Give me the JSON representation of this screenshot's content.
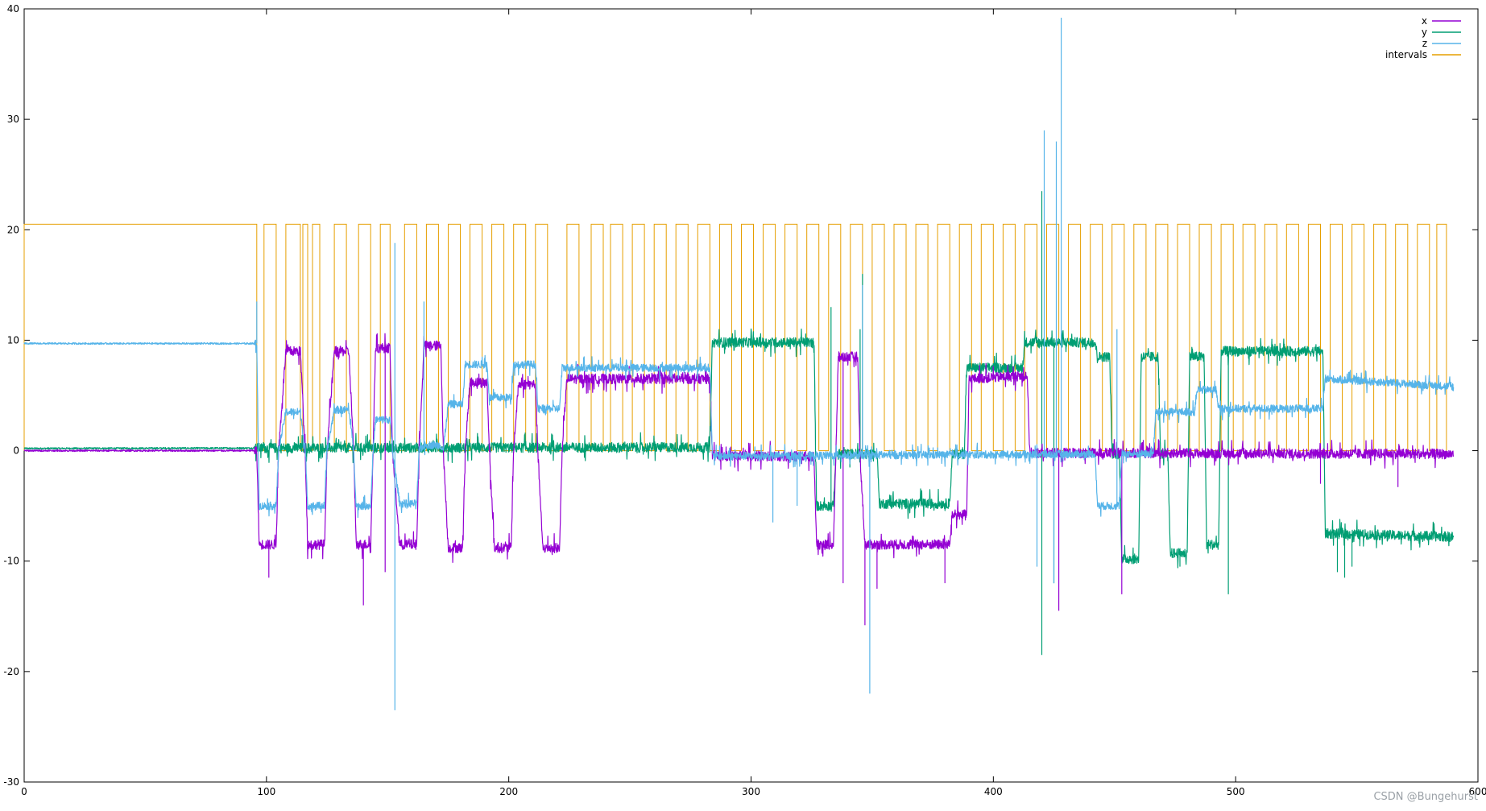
{
  "chart_data": {
    "type": "line",
    "title": "",
    "xlabel": "",
    "ylabel": "",
    "xlim": [
      0,
      600
    ],
    "ylim": [
      -30,
      40
    ],
    "x_ticks": [
      0,
      100,
      200,
      300,
      400,
      500,
      600
    ],
    "y_ticks": [
      -30,
      -20,
      -10,
      0,
      10,
      20,
      30,
      40
    ],
    "grid": false,
    "legend_position": "top-right",
    "series": [
      {
        "name": "x",
        "color": "#9400d3",
        "levels": [
          [
            0,
            0.0
          ],
          [
            96,
            0.0
          ],
          [
            97,
            -8.5
          ],
          [
            104,
            -8.5
          ],
          [
            105,
            0.0
          ],
          [
            108,
            9.0
          ],
          [
            114,
            9.0
          ],
          [
            116,
            0.0
          ],
          [
            117,
            -8.5
          ],
          [
            124,
            -8.5
          ],
          [
            125,
            0.0
          ],
          [
            128,
            9.0
          ],
          [
            134,
            9.0
          ],
          [
            136,
            0.0
          ],
          [
            137,
            -8.5
          ],
          [
            143,
            -8.5
          ],
          [
            144,
            0.0
          ],
          [
            145,
            9.3
          ],
          [
            151,
            9.3
          ],
          [
            152,
            0.0
          ],
          [
            155,
            -8.5
          ],
          [
            162,
            -8.5
          ],
          [
            163,
            0.0
          ],
          [
            165,
            9.5
          ],
          [
            172,
            9.5
          ],
          [
            173,
            0.0
          ],
          [
            175,
            -8.8
          ],
          [
            181,
            -8.8
          ],
          [
            182,
            0.0
          ],
          [
            184,
            6.2
          ],
          [
            191,
            6.2
          ],
          [
            192,
            0.0
          ],
          [
            194,
            -8.8
          ],
          [
            201,
            -8.8
          ],
          [
            202,
            0.0
          ],
          [
            204,
            6.0
          ],
          [
            211,
            6.0
          ],
          [
            212,
            0.0
          ],
          [
            214,
            -8.8
          ],
          [
            221,
            -8.8
          ],
          [
            222,
            0.0
          ],
          [
            224,
            6.5
          ],
          [
            283,
            6.5
          ],
          [
            284,
            -0.5
          ],
          [
            326,
            -0.5
          ],
          [
            327,
            -8.5
          ],
          [
            334,
            -8.5
          ],
          [
            335,
            -0.5
          ],
          [
            336,
            8.5
          ],
          [
            344,
            8.5
          ],
          [
            345,
            -0.5
          ],
          [
            347,
            -8.5
          ],
          [
            382,
            -8.5
          ],
          [
            383,
            -5.8
          ],
          [
            389,
            -5.8
          ],
          [
            390,
            6.5
          ],
          [
            414,
            6.8
          ],
          [
            415,
            -0.2
          ],
          [
            590,
            -0.3
          ]
        ],
        "spikes": [
          [
            101,
            -11.5
          ],
          [
            140,
            -14.0
          ],
          [
            149,
            -11.0
          ],
          [
            338,
            -12.0
          ],
          [
            347,
            -15.8
          ],
          [
            352,
            -12.5
          ],
          [
            380,
            -12.0
          ],
          [
            427,
            -14.5
          ],
          [
            453,
            -13.0
          ],
          [
            535,
            -3.0
          ],
          [
            567,
            -3.3
          ]
        ]
      },
      {
        "name": "y",
        "color": "#009e73",
        "levels": [
          [
            0,
            0.2
          ],
          [
            283,
            0.3
          ],
          [
            284,
            9.8
          ],
          [
            326,
            9.8
          ],
          [
            327,
            -5.0
          ],
          [
            334,
            -5.0
          ],
          [
            335,
            -0.3
          ],
          [
            352,
            -0.3
          ],
          [
            353,
            -4.8
          ],
          [
            382,
            -4.8
          ],
          [
            383,
            -0.3
          ],
          [
            388,
            -0.3
          ],
          [
            389,
            7.5
          ],
          [
            412,
            7.5
          ],
          [
            413,
            9.8
          ],
          [
            442,
            9.8
          ],
          [
            443,
            8.5
          ],
          [
            448,
            8.5
          ],
          [
            449,
            -0.3
          ],
          [
            452,
            -0.3
          ],
          [
            453,
            -9.8
          ],
          [
            460,
            -9.8
          ],
          [
            461,
            8.5
          ],
          [
            468,
            8.5
          ],
          [
            469,
            -0.3
          ],
          [
            472,
            -0.3
          ],
          [
            473,
            -9.3
          ],
          [
            480,
            -9.3
          ],
          [
            481,
            8.5
          ],
          [
            487,
            8.5
          ],
          [
            488,
            -8.5
          ],
          [
            493,
            -8.5
          ],
          [
            494,
            9.0
          ],
          [
            536,
            9.0
          ],
          [
            537,
            -7.5
          ],
          [
            590,
            -7.8
          ]
        ],
        "spikes": [
          [
            420,
            -18.5
          ],
          [
            420,
            23.5
          ],
          [
            425,
            -12.0
          ],
          [
            333,
            13.0
          ],
          [
            345,
            11.0
          ],
          [
            346,
            16.0
          ],
          [
            477,
            -10.5
          ],
          [
            497,
            -13.0
          ],
          [
            542,
            -11.0
          ],
          [
            545,
            -11.5
          ],
          [
            548,
            -10.5
          ]
        ]
      },
      {
        "name": "z",
        "color": "#56b4e9",
        "levels": [
          [
            0,
            9.7
          ],
          [
            96,
            9.7
          ],
          [
            97,
            -5.0
          ],
          [
            104,
            -5.0
          ],
          [
            105,
            0.0
          ],
          [
            108,
            3.5
          ],
          [
            114,
            3.5
          ],
          [
            116,
            0.0
          ],
          [
            117,
            -5.0
          ],
          [
            124,
            -5.0
          ],
          [
            125,
            0.0
          ],
          [
            128,
            3.7
          ],
          [
            134,
            3.7
          ],
          [
            136,
            0.0
          ],
          [
            137,
            -5.0
          ],
          [
            143,
            -5.0
          ],
          [
            144,
            0.0
          ],
          [
            145,
            2.8
          ],
          [
            151,
            2.8
          ],
          [
            152,
            0.0
          ],
          [
            155,
            -4.8
          ],
          [
            162,
            -4.8
          ],
          [
            163,
            0.0
          ],
          [
            165,
            0.5
          ],
          [
            172,
            0.5
          ],
          [
            173,
            0.0
          ],
          [
            175,
            4.2
          ],
          [
            181,
            4.2
          ],
          [
            182,
            7.8
          ],
          [
            191,
            7.8
          ],
          [
            192,
            4.8
          ],
          [
            201,
            4.8
          ],
          [
            202,
            7.8
          ],
          [
            211,
            7.8
          ],
          [
            212,
            3.8
          ],
          [
            221,
            3.8
          ],
          [
            222,
            7.5
          ],
          [
            283,
            7.5
          ],
          [
            284,
            -0.5
          ],
          [
            442,
            -0.3
          ],
          [
            443,
            -5.0
          ],
          [
            452,
            -5.0
          ],
          [
            453,
            -0.3
          ],
          [
            466,
            -0.3
          ],
          [
            467,
            3.5
          ],
          [
            483,
            3.5
          ],
          [
            484,
            5.5
          ],
          [
            492,
            5.5
          ],
          [
            493,
            3.8
          ],
          [
            536,
            3.8
          ],
          [
            537,
            6.5
          ],
          [
            590,
            5.8
          ]
        ],
        "spikes": [
          [
            96,
            13.5
          ],
          [
            153,
            18.8
          ],
          [
            153,
            -23.5
          ],
          [
            165,
            13.5
          ],
          [
            421,
            29.0
          ],
          [
            426,
            28.0
          ],
          [
            428,
            39.2
          ],
          [
            425,
            -12.0
          ],
          [
            418,
            -10.5
          ],
          [
            349,
            -22.0
          ],
          [
            346,
            15.0
          ],
          [
            309,
            -6.5
          ],
          [
            319,
            -5.0
          ],
          [
            451,
            11.0
          ]
        ]
      },
      {
        "name": "intervals",
        "color": "#e69f00",
        "high": 20.5,
        "low": 0.0,
        "high_spans": [
          [
            0,
            96
          ],
          [
            99,
            104
          ],
          [
            108,
            114
          ],
          [
            115,
            117
          ],
          [
            119,
            122
          ],
          [
            128,
            133
          ],
          [
            138,
            143
          ],
          [
            147,
            151
          ],
          [
            157,
            162
          ],
          [
            166,
            171
          ],
          [
            175,
            180
          ],
          [
            184,
            189
          ],
          [
            193,
            198
          ],
          [
            202,
            207
          ],
          [
            211,
            216
          ],
          [
            224,
            229
          ],
          [
            234,
            239
          ],
          [
            242,
            247
          ],
          [
            251,
            256
          ],
          [
            260,
            265
          ],
          [
            269,
            274
          ],
          [
            278,
            283
          ],
          [
            287,
            292
          ],
          [
            296,
            301
          ],
          [
            305,
            310
          ],
          [
            314,
            319
          ],
          [
            323,
            328
          ],
          [
            332,
            337
          ],
          [
            341,
            346
          ],
          [
            350,
            355
          ],
          [
            359,
            364
          ],
          [
            368,
            373
          ],
          [
            377,
            382
          ],
          [
            386,
            391
          ],
          [
            395,
            400
          ],
          [
            404,
            409
          ],
          [
            413,
            418
          ],
          [
            422,
            427
          ],
          [
            431,
            436
          ],
          [
            440,
            445
          ],
          [
            449,
            454
          ],
          [
            458,
            463
          ],
          [
            467,
            472
          ],
          [
            476,
            481
          ],
          [
            485,
            490
          ],
          [
            494,
            499
          ],
          [
            503,
            508
          ],
          [
            512,
            517
          ],
          [
            521,
            526
          ],
          [
            530,
            535
          ],
          [
            539,
            544
          ],
          [
            548,
            553
          ],
          [
            557,
            562
          ],
          [
            566,
            571
          ],
          [
            575,
            580
          ],
          [
            583,
            587
          ]
        ]
      }
    ]
  },
  "watermark": "CSDN @Bungehurst"
}
